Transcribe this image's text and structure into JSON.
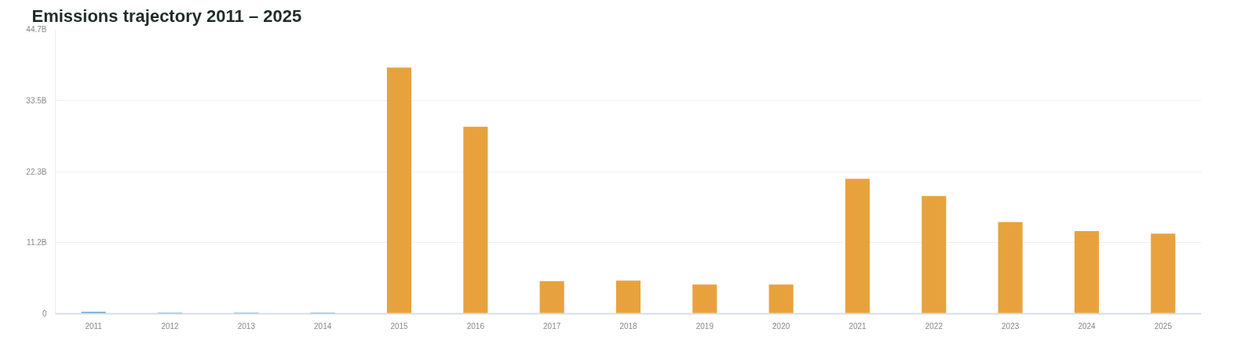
{
  "chart_data": {
    "type": "bar",
    "title": "Emissions trajectory 2011 – 2025",
    "categories": [
      "2011",
      "2012",
      "2013",
      "2014",
      "2015",
      "2016",
      "2017",
      "2018",
      "2019",
      "2020",
      "2021",
      "2022",
      "2023",
      "2024",
      "2025"
    ],
    "series": [
      {
        "color": "#6fa8d6",
        "values": [
          0.3,
          0.2,
          0.2,
          0.2,
          null,
          null,
          null,
          null,
          null,
          null,
          null,
          null,
          null,
          null,
          null
        ]
      },
      {
        "color": "#e8a23d",
        "values": [
          null,
          null,
          null,
          null,
          38.7,
          29.4,
          5.1,
          5.2,
          4.6,
          4.6,
          21.2,
          18.5,
          14.4,
          13.0,
          12.6
        ]
      }
    ],
    "ylim": [
      0,
      44.7
    ],
    "yticks": [
      0,
      {
        "value": 11.2,
        "label": "11.2B"
      },
      {
        "value": 22.3,
        "label": "22.3B"
      },
      {
        "value": 33.5,
        "label": "33.5B"
      },
      {
        "value": 44.7,
        "label": "44.7B"
      }
    ],
    "grid": "y"
  }
}
